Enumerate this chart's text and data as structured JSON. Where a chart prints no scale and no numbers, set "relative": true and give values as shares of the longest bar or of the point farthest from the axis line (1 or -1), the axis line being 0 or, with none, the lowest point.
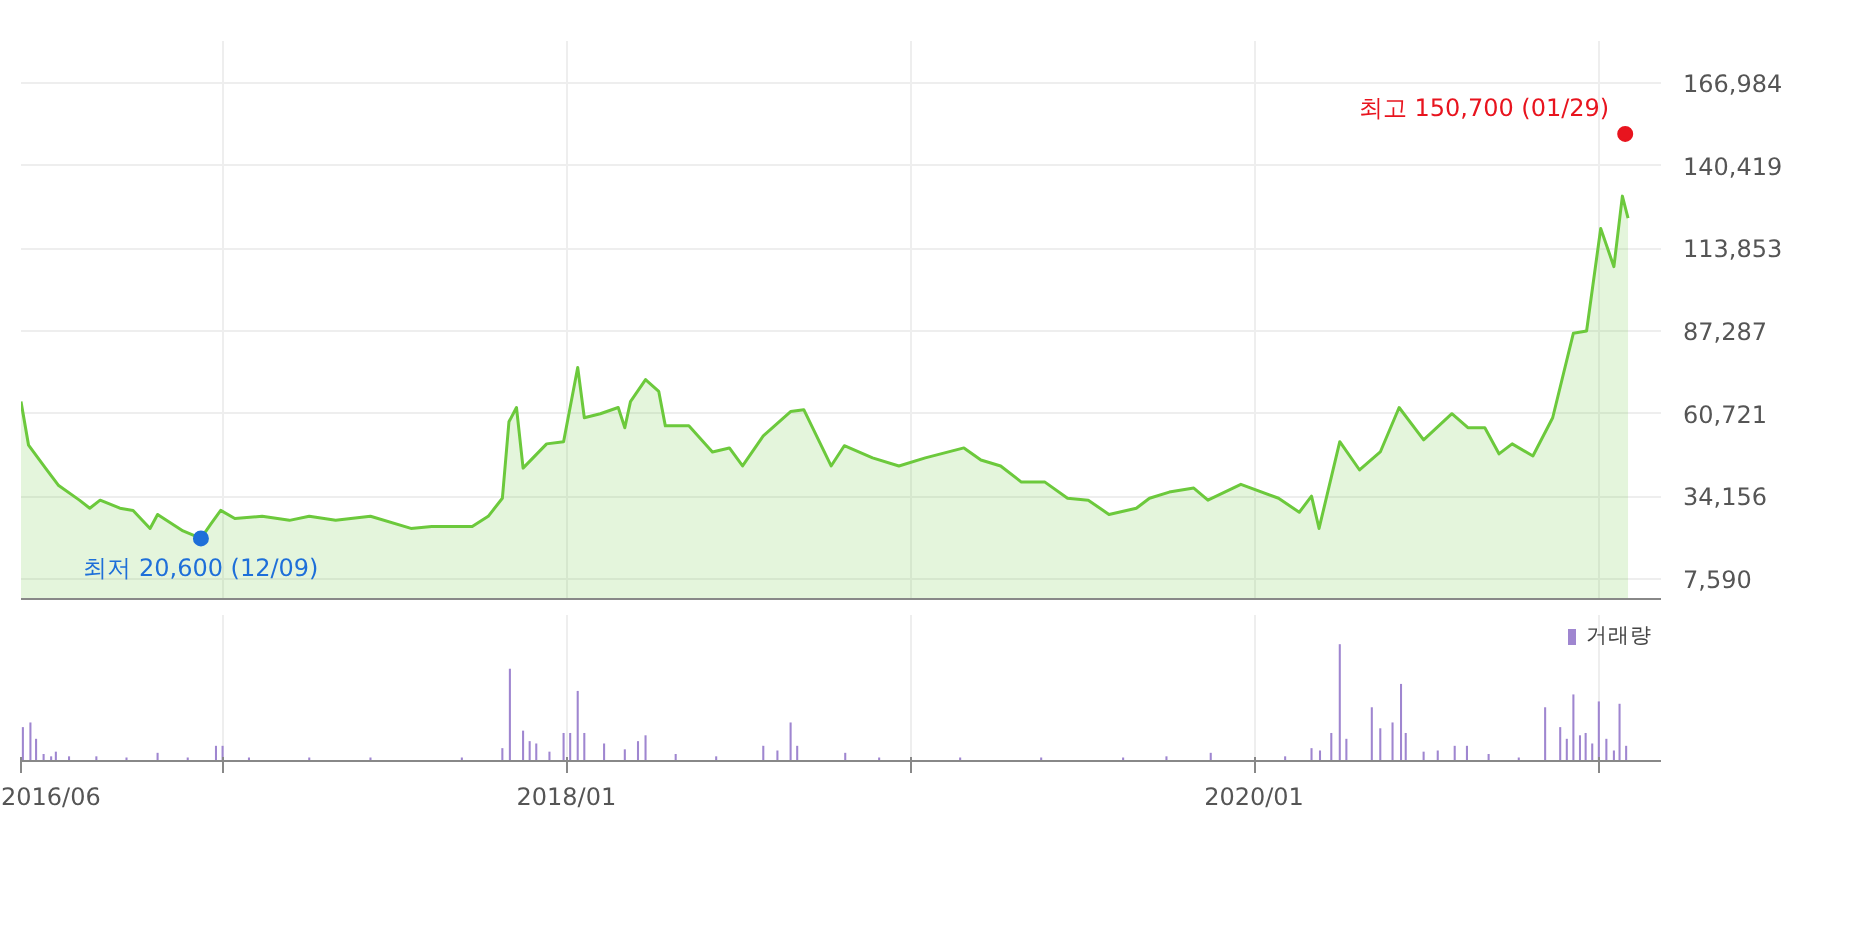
{
  "chart_data": [
    {
      "type": "area",
      "xlim": [
        "2016-06-01",
        "2021-03-08"
      ],
      "xticks": [
        {
          "value": "2016-06-01",
          "label": null
        },
        {
          "value": "2017-01-01",
          "label": null
        },
        {
          "value": "2018-01-01",
          "label": null
        },
        {
          "value": "2019-01-01",
          "label": null
        },
        {
          "value": "2020-01-01",
          "label": null
        },
        {
          "value": "2021-01-01",
          "label": null
        }
      ],
      "ylim": [
        1100,
        180600
      ],
      "yticks": [
        {
          "value": 7590,
          "label": "7,590"
        },
        {
          "value": 34156,
          "label": "34,156"
        },
        {
          "value": 60721,
          "label": "60,721"
        },
        {
          "value": 87287,
          "label": "87,287"
        },
        {
          "value": 113853,
          "label": "113,853"
        },
        {
          "value": 140419,
          "label": "140,419"
        },
        {
          "value": 166984,
          "label": "166,984"
        }
      ],
      "tick_labels": "y",
      "grid": true,
      "x": [
        "2016-06-01",
        "2016-06-09",
        "2016-06-27",
        "2016-07-11",
        "2016-08-02",
        "2016-08-13",
        "2016-08-24",
        "2016-09-14",
        "2016-09-28",
        "2016-10-16",
        "2016-10-24",
        "2016-11-20",
        "2016-12-09",
        "2016-12-20",
        "2016-12-30",
        "2017-01-14",
        "2017-02-12",
        "2017-03-13",
        "2017-04-03",
        "2017-05-01",
        "2017-06-07",
        "2017-07-20",
        "2017-08-11",
        "2017-09-23",
        "2017-10-10",
        "2017-10-25",
        "2017-11-01",
        "2017-11-09",
        "2017-11-16",
        "2017-12-11",
        "2017-12-29",
        "2018-01-13",
        "2018-01-20",
        "2018-02-06",
        "2018-02-25",
        "2018-03-04",
        "2018-03-10",
        "2018-03-26",
        "2018-04-09",
        "2018-04-16",
        "2018-05-11",
        "2018-06-05",
        "2018-06-23",
        "2018-07-07",
        "2018-07-29",
        "2018-08-27",
        "2018-09-10",
        "2018-10-09",
        "2018-10-23",
        "2018-11-22",
        "2018-12-20",
        "2019-01-17",
        "2019-02-27",
        "2019-03-17",
        "2019-04-07",
        "2019-04-29",
        "2019-05-24",
        "2019-06-17",
        "2019-07-09",
        "2019-07-31",
        "2019-08-29",
        "2019-09-12",
        "2019-10-03",
        "2019-10-29",
        "2019-11-13",
        "2019-12-18",
        "2020-01-27",
        "2020-02-18",
        "2020-03-02",
        "2020-03-10",
        "2020-04-01",
        "2020-04-22",
        "2020-05-14",
        "2020-06-03",
        "2020-06-29",
        "2020-07-29",
        "2020-08-15",
        "2020-09-02",
        "2020-09-17",
        "2020-10-01",
        "2020-10-23",
        "2020-11-13",
        "2020-12-05",
        "2020-12-19",
        "2021-01-03",
        "2021-01-17",
        "2021-01-26",
        "2021-02-01"
      ],
      "series": [
        {
          "color": "#6cc93c",
          "values": [
            64600,
            50600,
            43200,
            37600,
            32900,
            30300,
            32900,
            30300,
            29600,
            23800,
            28300,
            23000,
            20600,
            25400,
            29600,
            27000,
            27700,
            26400,
            27700,
            26400,
            27700,
            23800,
            24400,
            24400,
            27700,
            33500,
            58100,
            62700,
            43200,
            51000,
            51700,
            75600,
            59400,
            60700,
            62700,
            56200,
            64600,
            71700,
            67900,
            56800,
            56800,
            48400,
            49700,
            43900,
            53600,
            61400,
            62000,
            43900,
            50400,
            46500,
            43900,
            46500,
            49700,
            45800,
            43900,
            38700,
            38700,
            33500,
            32900,
            28300,
            30300,
            33500,
            35500,
            36800,
            32900,
            38000,
            33500,
            29000,
            34200,
            23800,
            51700,
            42600,
            48400,
            62700,
            52300,
            60700,
            56200,
            56200,
            47800,
            51000,
            47100,
            59400,
            86600,
            87300,
            120300,
            108000,
            130700,
            123600
          ]
        }
      ],
      "annotations": [
        {
          "text": "최고 150,700 (01/29)",
          "x": "2021-01-29",
          "y": 150700
        },
        {
          "text": "최저 20,600 (12/09)",
          "x": "2016-12-09",
          "y": 20600
        }
      ]
    },
    {
      "type": "bar",
      "relative": true,
      "legend": "top right",
      "tick_labels": "x",
      "grid": "x",
      "xlim": [
        "2016-06-01",
        "2021-03-08"
      ],
      "xticks": [
        {
          "value": "2016-06-01",
          "label": "2016/06"
        },
        {
          "value": "2017-01-01",
          "label": null
        },
        {
          "value": "2018-01-01",
          "label": "2018/01"
        },
        {
          "value": "2019-01-01",
          "label": null
        },
        {
          "value": "2020-01-01",
          "label": "2020/01"
        },
        {
          "value": "2021-01-01",
          "label": null
        }
      ],
      "x": [
        "2016-06-03",
        "2016-06-11",
        "2016-06-17",
        "2016-06-25",
        "2016-07-03",
        "2016-07-08",
        "2016-07-22",
        "2016-08-20",
        "2016-09-21",
        "2016-10-24",
        "2016-11-25",
        "2016-12-25",
        "2017-01-01",
        "2017-01-29",
        "2017-04-03",
        "2017-06-07",
        "2017-09-12",
        "2017-10-25",
        "2017-11-02",
        "2017-11-16",
        "2017-11-23",
        "2017-11-30",
        "2017-12-14",
        "2017-12-29",
        "2018-01-05",
        "2018-01-13",
        "2018-01-20",
        "2018-02-10",
        "2018-03-04",
        "2018-03-18",
        "2018-03-26",
        "2018-04-27",
        "2018-06-09",
        "2018-07-29",
        "2018-08-13",
        "2018-08-27",
        "2018-09-03",
        "2018-10-24",
        "2018-11-29",
        "2019-02-23",
        "2019-05-20",
        "2019-08-15",
        "2019-09-30",
        "2019-11-16",
        "2020-02-03",
        "2020-03-02",
        "2020-03-11",
        "2020-03-23",
        "2020-04-01",
        "2020-04-08",
        "2020-05-05",
        "2020-05-14",
        "2020-05-27",
        "2020-06-05",
        "2020-06-10",
        "2020-06-29",
        "2020-07-14",
        "2020-08-01",
        "2020-08-14",
        "2020-09-06",
        "2020-10-08",
        "2020-11-05",
        "2020-11-21",
        "2020-11-28",
        "2020-12-05",
        "2020-12-12",
        "2020-12-18",
        "2020-12-25",
        "2021-01-01",
        "2021-01-09",
        "2021-01-17",
        "2021-01-23",
        "2021-01-30"
      ],
      "series": [
        {
          "name": "거래량",
          "color": "#9f86d0",
          "values": [
            0.29,
            0.33,
            0.19,
            0.06,
            0.04,
            0.08,
            0.04,
            0.04,
            0.03,
            0.07,
            0.03,
            0.13,
            0.13,
            0.03,
            0.03,
            0.03,
            0.03,
            0.11,
            0.79,
            0.26,
            0.17,
            0.15,
            0.08,
            0.24,
            0.24,
            0.6,
            0.24,
            0.15,
            0.1,
            0.17,
            0.22,
            0.06,
            0.04,
            0.13,
            0.09,
            0.33,
            0.13,
            0.07,
            0.03,
            0.03,
            0.03,
            0.03,
            0.04,
            0.07,
            0.04,
            0.11,
            0.09,
            0.24,
            1.0,
            0.19,
            0.46,
            0.28,
            0.33,
            0.66,
            0.24,
            0.08,
            0.09,
            0.13,
            0.13,
            0.06,
            0.03,
            0.46,
            0.29,
            0.19,
            0.57,
            0.22,
            0.24,
            0.15,
            0.51,
            0.19,
            0.09,
            0.49,
            0.13
          ]
        }
      ]
    }
  ]
}
